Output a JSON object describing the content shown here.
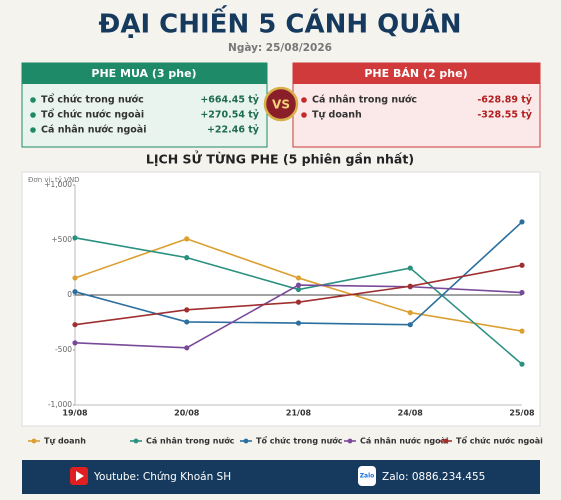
{
  "header": {
    "title": "ĐẠI CHIẾN 5 CÁNH QUÂN",
    "date": "Ngày: 25/08/2026"
  },
  "panels": {
    "buy": {
      "title": "PHE MUA  (3 phe)",
      "items": [
        {
          "name": "Tổ chức trong nước",
          "value": "+664.45 tỷ"
        },
        {
          "name": "Tổ chức nước ngoài",
          "value": "+270.54 tỷ"
        },
        {
          "name": "Cá nhân nước ngoài",
          "value": "+22.46 tỷ"
        }
      ]
    },
    "vs": "VS",
    "sell": {
      "title": "PHE BÁN  (2 phe)",
      "items": [
        {
          "name": "Cá nhân trong nước",
          "value": "-628.89 tỷ"
        },
        {
          "name": "Tự doanh",
          "value": "-328.55 tỷ"
        }
      ]
    }
  },
  "chart_data": {
    "type": "line",
    "title": "LỊCH SỬ TỪNG PHE (5 phiên gần nhất)",
    "annotation": "Đơn vị: tỷ VND",
    "categories": [
      "19/08",
      "20/08",
      "21/08",
      "24/08",
      "25/08"
    ],
    "ylim": [
      -1000,
      1000
    ],
    "yticks": [
      {
        "value": 1000,
        "label": "+1,000"
      },
      {
        "value": 500,
        "label": "+500"
      },
      0,
      -500,
      {
        "value": -1000,
        "label": "-1,000"
      }
    ],
    "zero_line": true,
    "series": [
      {
        "name": "Tự doanh",
        "color": "#dca032",
        "values": [
          155,
          510,
          155,
          -160,
          -328.55
        ]
      },
      {
        "name": "Cá nhân trong nước",
        "color": "#2a9080",
        "values": [
          520,
          340,
          50,
          245,
          -628.89
        ]
      },
      {
        "name": "Tổ chức trong nước",
        "color": "#2a6fa0",
        "values": [
          30,
          -245,
          -255,
          -270,
          664.45
        ]
      },
      {
        "name": "Cá nhân nước ngoài",
        "color": "#7a4a9a",
        "values": [
          -435,
          -480,
          90,
          75,
          22.46
        ]
      },
      {
        "name": "Tổ chức nước ngoài",
        "color": "#a03030",
        "values": [
          -270,
          -135,
          -65,
          80,
          270.54
        ]
      }
    ]
  },
  "footer": {
    "youtube": "Youtube: Chứng Khoán SH",
    "zalo_icon": "Zalo",
    "zalo": "Zalo: 0886.234.455"
  }
}
